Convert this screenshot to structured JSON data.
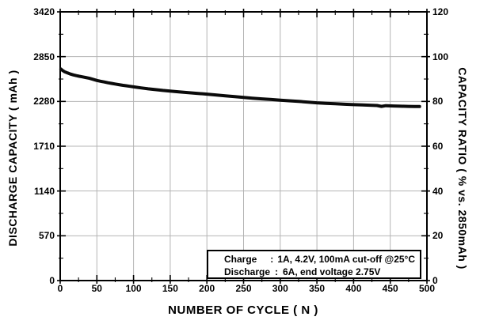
{
  "chart_data": {
    "type": "line",
    "title": "",
    "x_axis": {
      "label": "NUMBER OF CYCLE ( N )",
      "min": 0,
      "max": 500,
      "major_ticks": [
        0,
        50,
        100,
        150,
        200,
        250,
        300,
        350,
        400,
        450,
        500
      ],
      "minor_tick_step": 25
    },
    "y_left": {
      "label": "DISCHARGE CAPACITY ( mAh )",
      "min": 0,
      "max": 3420,
      "major_ticks": [
        0,
        570,
        1140,
        1710,
        2280,
        2850,
        3420
      ],
      "minor_tick_step": 285
    },
    "y_right": {
      "label": "CAPACITY RATIO ( % vs. 2850mAh )",
      "min": 0,
      "max": 120,
      "major_ticks": [
        0,
        20,
        40,
        60,
        80,
        100,
        120
      ],
      "minor_tick_step": 10
    },
    "grid": {
      "show": true,
      "color": "#b4b4b4"
    },
    "frame_color": "#000000",
    "series": [
      {
        "name": "Discharge capacity",
        "axis": "left",
        "color": "#0a0a0a",
        "line_width": 4,
        "points": [
          [
            1,
            2692
          ],
          [
            3,
            2676
          ],
          [
            6,
            2658
          ],
          [
            10,
            2642
          ],
          [
            14,
            2628
          ],
          [
            18,
            2617
          ],
          [
            22,
            2608
          ],
          [
            26,
            2600
          ],
          [
            30,
            2593
          ],
          [
            35,
            2584
          ],
          [
            40,
            2574
          ],
          [
            45,
            2561
          ],
          [
            50,
            2547
          ],
          [
            55,
            2537
          ],
          [
            60,
            2528
          ],
          [
            65,
            2518
          ],
          [
            70,
            2510
          ],
          [
            75,
            2502
          ],
          [
            80,
            2494
          ],
          [
            85,
            2486
          ],
          [
            90,
            2479
          ],
          [
            95,
            2472
          ],
          [
            100,
            2465
          ],
          [
            110,
            2452
          ],
          [
            120,
            2440
          ],
          [
            130,
            2430
          ],
          [
            140,
            2420
          ],
          [
            150,
            2412
          ],
          [
            162,
            2402
          ],
          [
            175,
            2392
          ],
          [
            188,
            2382
          ],
          [
            200,
            2373
          ],
          [
            212,
            2363
          ],
          [
            225,
            2352
          ],
          [
            238,
            2342
          ],
          [
            250,
            2332
          ],
          [
            262,
            2322
          ],
          [
            275,
            2313
          ],
          [
            288,
            2304
          ],
          [
            300,
            2295
          ],
          [
            312,
            2288
          ],
          [
            325,
            2280
          ],
          [
            338,
            2271
          ],
          [
            350,
            2262
          ],
          [
            362,
            2256
          ],
          [
            375,
            2250
          ],
          [
            388,
            2244
          ],
          [
            400,
            2239
          ],
          [
            412,
            2235
          ],
          [
            425,
            2231
          ],
          [
            432,
            2228
          ],
          [
            438,
            2217
          ],
          [
            444,
            2226
          ],
          [
            455,
            2222
          ],
          [
            465,
            2219
          ],
          [
            475,
            2217
          ],
          [
            483,
            2216
          ],
          [
            490,
            2215
          ]
        ]
      }
    ],
    "annotation": {
      "rows": [
        {
          "label": "Charge",
          "colon": ":",
          "value": "1A, 4.2V, 100mA cut-off @25°C"
        },
        {
          "label": "Discharge",
          "colon": ":",
          "value": "6A, end voltage 2.75V"
        }
      ]
    }
  }
}
